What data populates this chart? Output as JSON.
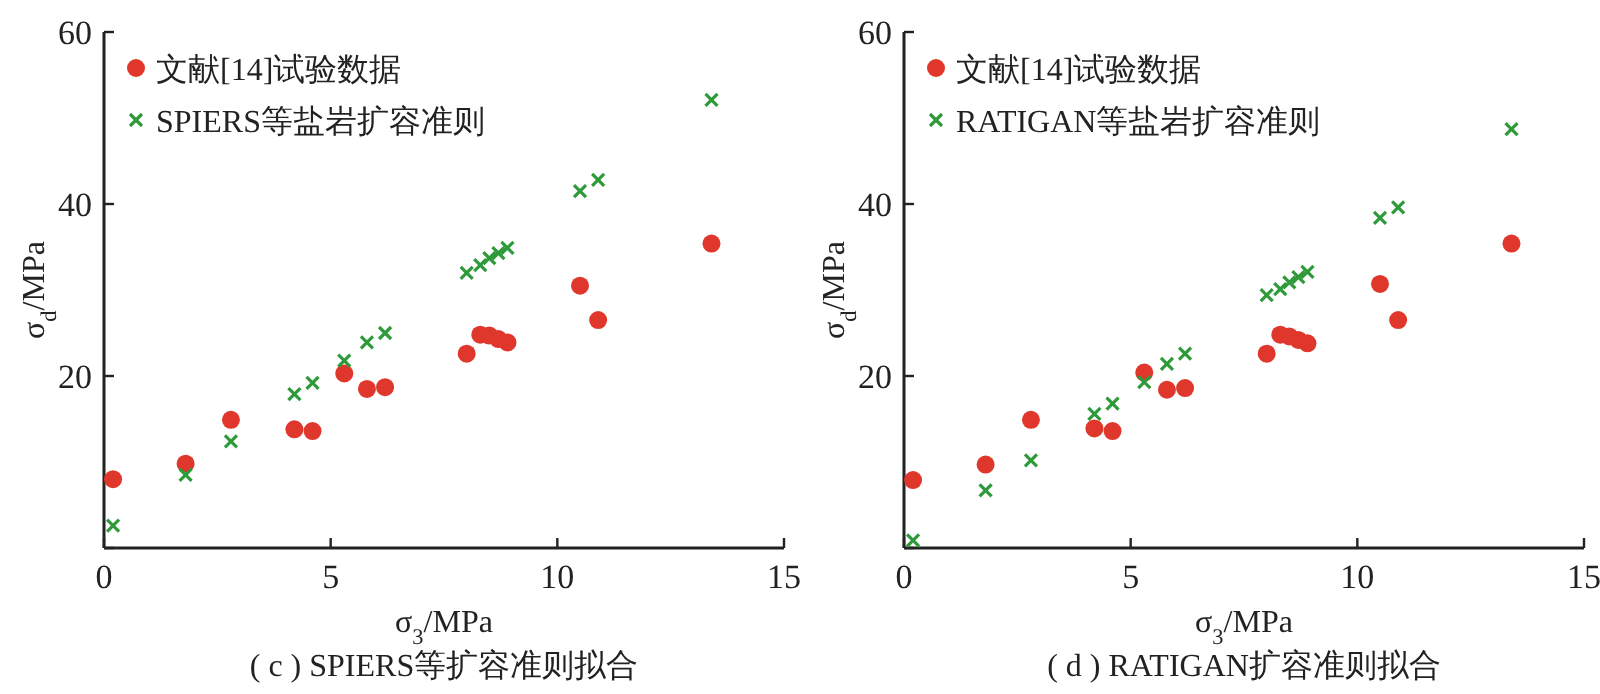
{
  "chart_data": [
    {
      "type": "scatter",
      "title": "( c ) SPIERS等扩容准则拟合",
      "xlabel": "σ$_{3}$/MPa",
      "ylabel": "σ$_{d}$/MPa",
      "xlim": [
        0,
        15
      ],
      "ylim": [
        0,
        60
      ],
      "xticks": [
        0,
        5,
        10,
        15
      ],
      "yticks": [
        {
          "value": 0,
          "label": null
        },
        20,
        40,
        60
      ],
      "legend": "top left",
      "x": [
        0.2,
        1.8,
        2.8,
        4.2,
        4.6,
        5.3,
        5.8,
        6.2,
        8.0,
        8.3,
        8.5,
        8.7,
        8.9,
        10.5,
        10.9,
        13.4
      ],
      "series": [
        {
          "name": "文献[14]试验数据",
          "color": "#e0372c",
          "marker": "circle",
          "values": [
            8.0,
            9.8,
            14.9,
            13.8,
            13.6,
            20.3,
            18.5,
            18.7,
            22.6,
            24.8,
            24.7,
            24.3,
            23.9,
            30.5,
            26.5,
            35.4
          ]
        },
        {
          "name": "SPIERS等盐岩扩容准则",
          "color": "#2e9a3a",
          "marker": "cross",
          "values": [
            2.6,
            8.5,
            12.4,
            17.9,
            19.2,
            21.8,
            23.9,
            25.0,
            32.0,
            32.9,
            33.7,
            34.3,
            34.9,
            41.5,
            42.8,
            52.1
          ]
        }
      ]
    },
    {
      "type": "scatter",
      "title": "( d ) RATIGAN扩容准则拟合",
      "xlabel": "σ$_{3}$/MPa",
      "ylabel": "σ$_{d}$/MPa",
      "xlim": [
        0,
        15
      ],
      "ylim": [
        0,
        60
      ],
      "xticks": [
        0,
        5,
        10,
        15
      ],
      "yticks": [
        {
          "value": 0,
          "label": null
        },
        20,
        40,
        60
      ],
      "legend": "top left",
      "x": [
        0.2,
        1.8,
        2.8,
        4.2,
        4.6,
        5.3,
        5.8,
        6.2,
        8.0,
        8.3,
        8.5,
        8.7,
        8.9,
        10.5,
        10.9,
        13.4
      ],
      "series": [
        {
          "name": "文献[14]试验数据",
          "color": "#e0372c",
          "marker": "circle",
          "values": [
            7.9,
            9.7,
            14.9,
            13.9,
            13.6,
            20.4,
            18.4,
            18.6,
            22.6,
            24.8,
            24.6,
            24.2,
            23.8,
            30.7,
            26.5,
            35.4
          ]
        },
        {
          "name": "RATIGAN等盐岩扩容准则",
          "color": "#2e9a3a",
          "marker": "cross",
          "values": [
            0.9,
            6.7,
            10.2,
            15.6,
            16.8,
            19.3,
            21.4,
            22.6,
            29.4,
            30.1,
            30.9,
            31.5,
            32.1,
            38.4,
            39.6,
            48.7
          ]
        }
      ]
    }
  ]
}
